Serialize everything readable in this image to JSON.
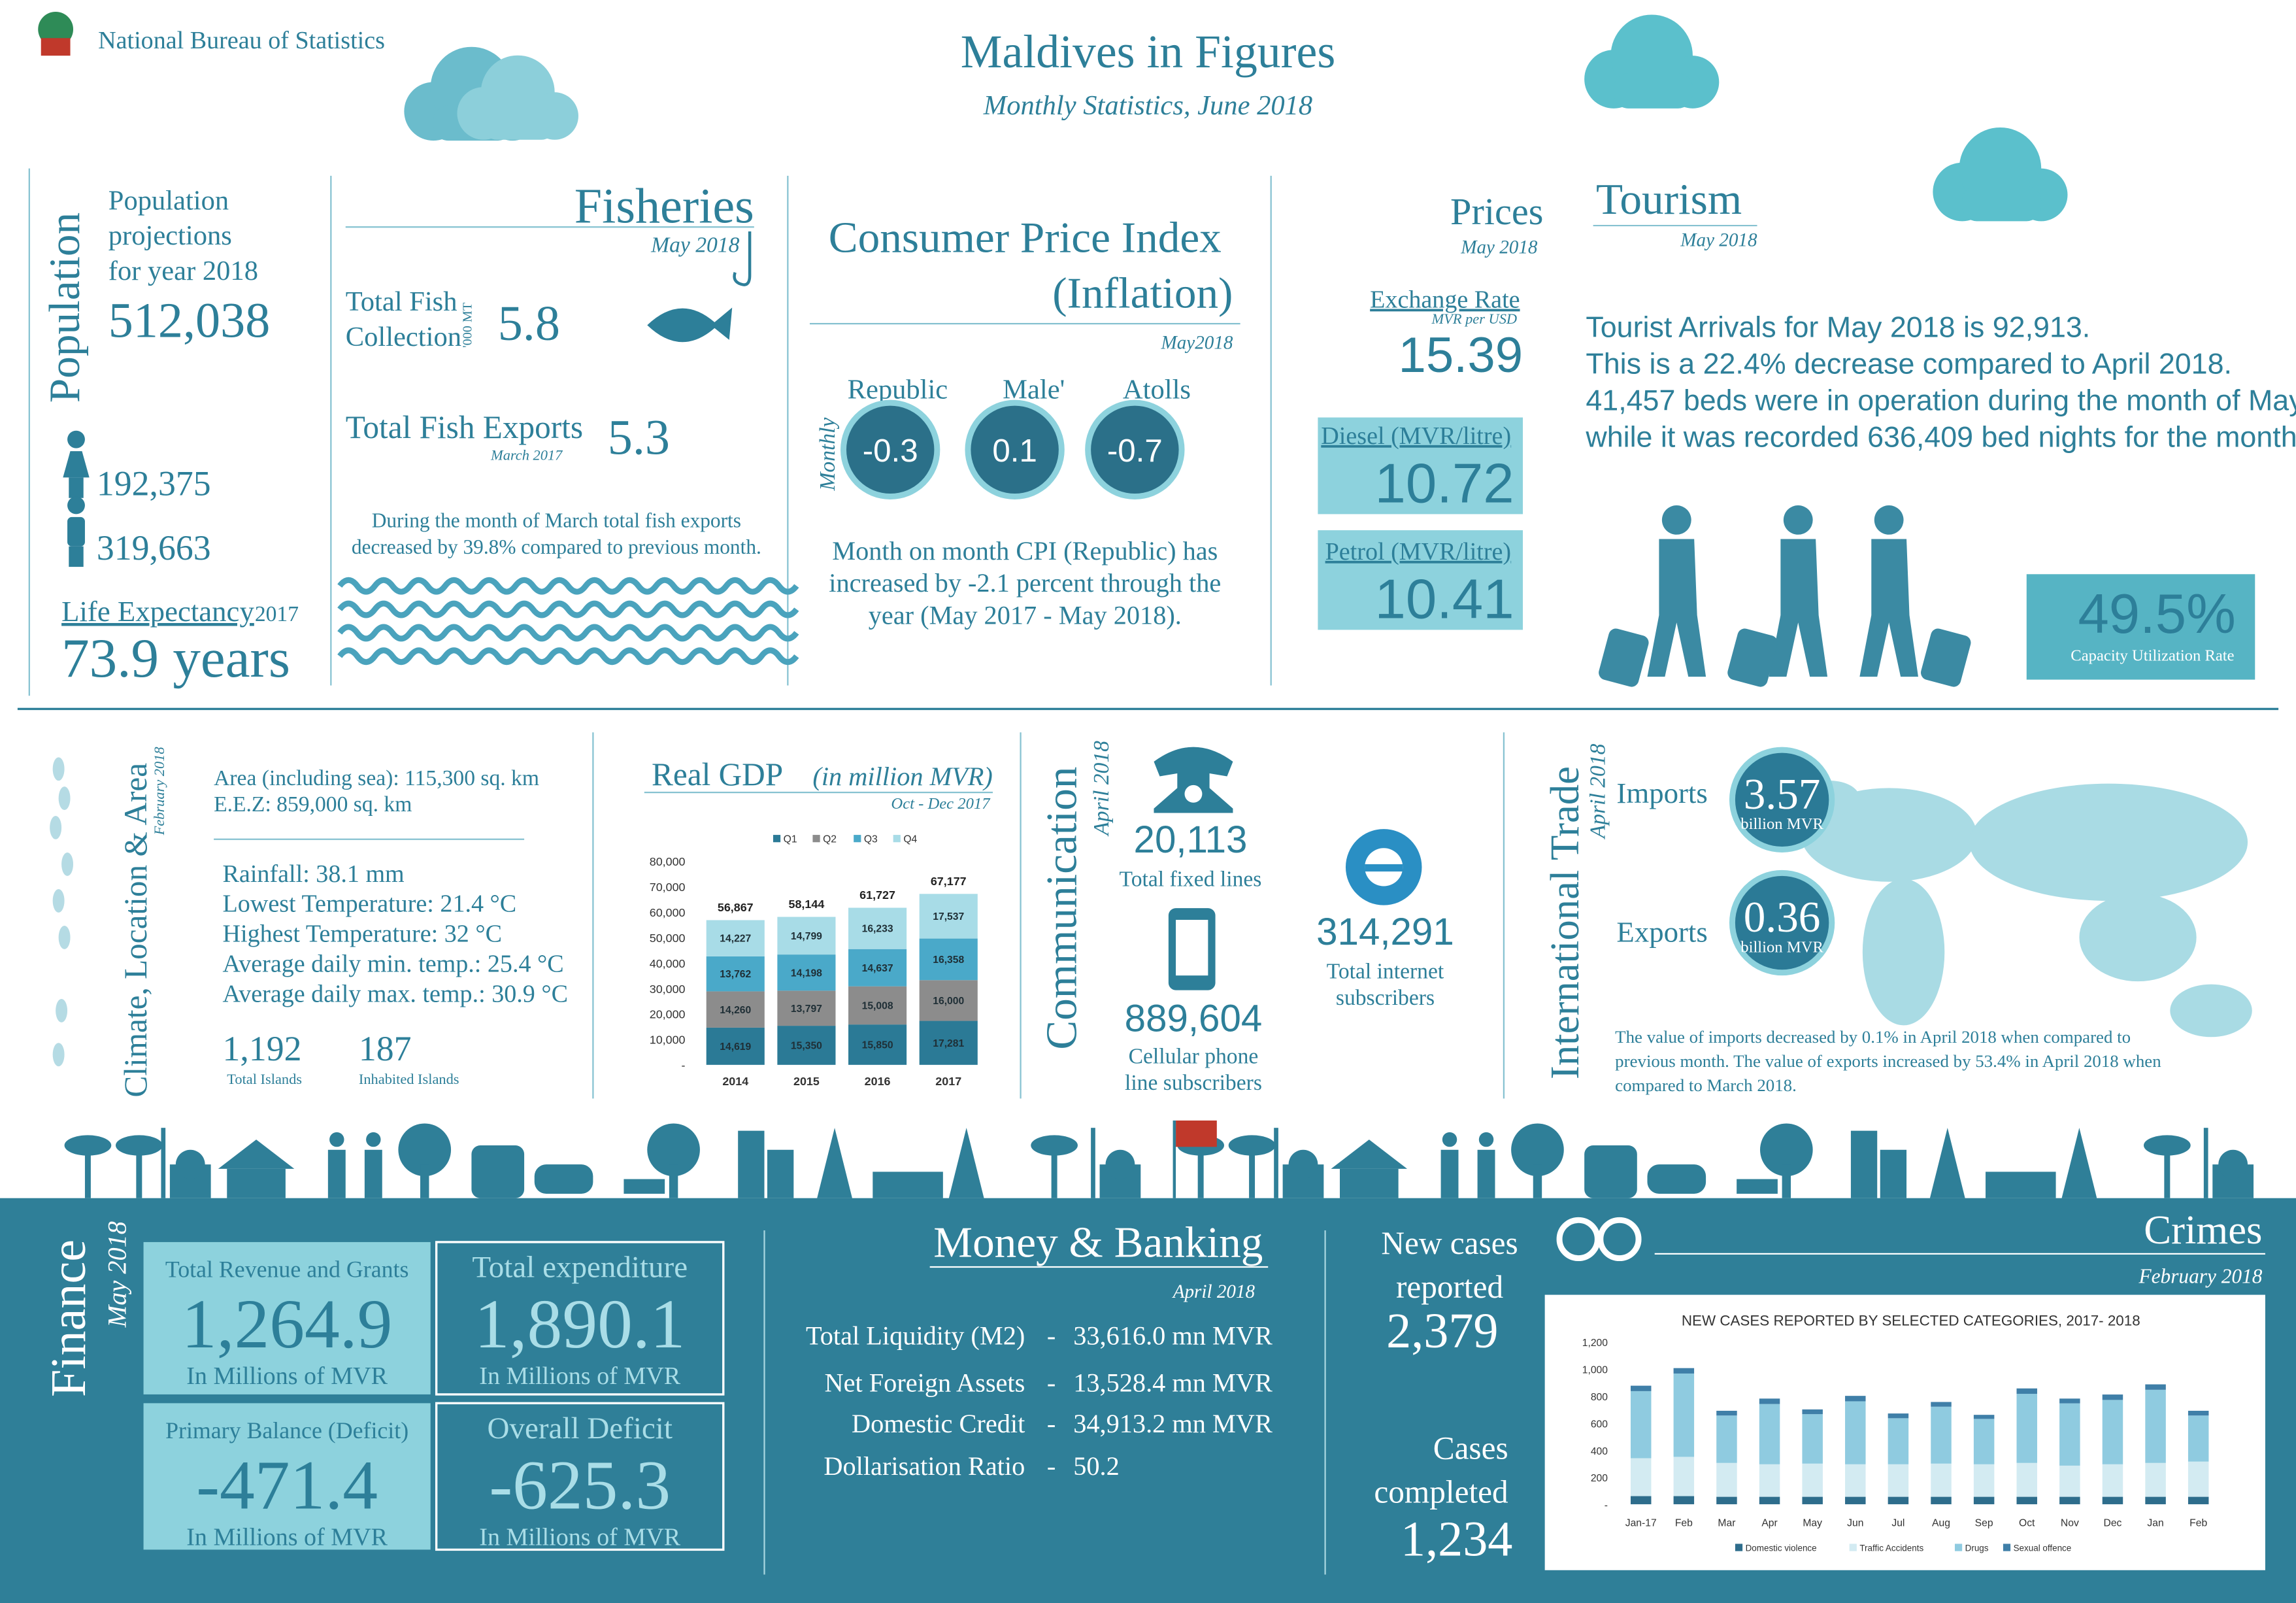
{
  "header": {
    "organization": "National Bureau of Statistics",
    "title": "Maldives in Figures",
    "subtitle": "Monthly Statistics, June 2018"
  },
  "population": {
    "heading": "Population",
    "projection_label": [
      "Population",
      "projections",
      "for year 2018"
    ],
    "projection_value": "512,038",
    "female": "192,375",
    "male": "319,663",
    "life_expectancy_label": "Life Expectancy",
    "life_expectancy_year": "2017",
    "life_expectancy_value": "73.9 years"
  },
  "fisheries": {
    "heading": "Fisheries",
    "date": "May 2018",
    "collection_label": [
      "Total Fish",
      "Collection"
    ],
    "collection_unit": "'000 MT",
    "collection_value": "5.8",
    "exports_label": "Total Fish Exports",
    "exports_date": "March 2017",
    "exports_value": "5.3",
    "note": [
      "During the month of March total fish exports",
      "decreased by 39.8% compared to previous month."
    ]
  },
  "cpi": {
    "heading": [
      "Consumer Price Index",
      "(Inflation)"
    ],
    "date": "May2018",
    "axis_label": "Monthly",
    "items": [
      {
        "label": "Republic",
        "value": "-0.3"
      },
      {
        "label": "Male'",
        "value": "0.1"
      },
      {
        "label": "Atolls",
        "value": "-0.7"
      }
    ],
    "note": [
      "Month on month CPI (Republic) has",
      "increased by -2.1 percent through the",
      "year (May 2017 - May 2018)."
    ]
  },
  "prices": {
    "heading": "Prices",
    "date": "May 2018",
    "exchange_label": "Exchange Rate",
    "exchange_unit": "MVR per USD",
    "exchange_value": "15.39",
    "diesel_label": "Diesel (MVR/litre)",
    "diesel_value": "10.72",
    "petrol_label": "Petrol (MVR/litre)",
    "petrol_value": "10.41"
  },
  "tourism": {
    "heading": "Tourism",
    "date": "May 2018",
    "text": [
      "Tourist Arrivals for May 2018 is 92,913.",
      "This is a 22.4% decrease compared to April 2018.",
      "41,457 beds were in operation during the month of May",
      "while it was recorded 636,409 bed nights for the month."
    ],
    "capacity_value": "49.5%",
    "capacity_label": "Capacity Utilization Rate"
  },
  "climate": {
    "heading": "Climate, Location & Area",
    "date": "February 2018",
    "area": [
      "Area (including sea): 115,300 sq. km",
      "E.E.Z: 859,000 sq. km"
    ],
    "weather": [
      "Rainfall: 38.1 mm",
      "Lowest Temperature: 21.4 °C",
      "Highest Temperature: 32 °C",
      "Average daily min. temp.: 25.4 °C",
      "Average daily max. temp.: 30.9 °C"
    ],
    "total_islands": "1,192",
    "total_islands_label": "Total Islands",
    "inhabited_islands": "187",
    "inhabited_islands_label": "Inhabited Islands"
  },
  "communication": {
    "heading": "Communication",
    "date": "April 2018",
    "fixed_lines": "20,113",
    "fixed_lines_label": "Total fixed lines",
    "cellular": "889,604",
    "cellular_label": [
      "Cellular phone",
      "line subscribers"
    ],
    "internet": "314,291",
    "internet_label": [
      "Total internet",
      "subscribers"
    ]
  },
  "trade": {
    "heading": "International Trade",
    "date": "April 2018",
    "imports_label": "Imports",
    "imports_value": "3.57",
    "imports_unit": "billion MVR",
    "exports_label": "Exports",
    "exports_value": "0.36",
    "exports_unit": "billion MVR",
    "note": [
      "The value of imports decreased by 0.1% in April 2018 when compared to",
      "previous month. The value of exports increased by 53.4% in April 2018 when",
      "compared to March 2018."
    ]
  },
  "finance": {
    "heading": "Finance",
    "date": "May 2018",
    "boxes": [
      {
        "label": "Total Revenue and Grants",
        "value": "1,264.9",
        "unit": "In Millions of MVR"
      },
      {
        "label": "Total expenditure",
        "value": "1,890.1",
        "unit": "In Millions of MVR"
      },
      {
        "label": "Primary Balance (Deficit)",
        "value": "-471.4",
        "unit": "In Millions of MVR"
      },
      {
        "label": "Overall Deficit",
        "value": "-625.3",
        "unit": "In Millions of MVR"
      }
    ]
  },
  "banking": {
    "heading": "Money & Banking",
    "date": "April 2018",
    "separator": "-",
    "rows": [
      [
        "Total Liquidity (M2)",
        "33,616.0 mn MVR"
      ],
      [
        "Net Foreign Assets",
        "13,528.4 mn MVR"
      ],
      [
        "Domestic Credit",
        "34,913.2 mn MVR"
      ],
      [
        "Dollarisation Ratio",
        "50.2"
      ]
    ]
  },
  "crimes": {
    "heading": "Crimes",
    "date": "February 2018",
    "new_cases_label": [
      "New cases",
      "reported"
    ],
    "new_cases_value": "2,379",
    "completed_label": [
      "Cases",
      "completed"
    ],
    "completed_value": "1,234"
  },
  "chart_data": [
    {
      "type": "bar",
      "stacked": true,
      "title": "Real GDP",
      "unit": "(in million MVR)",
      "subtitle": "Oct - Dec 2017",
      "categories": [
        "2014",
        "2015",
        "2016",
        "2017"
      ],
      "series": [
        {
          "name": "Q1",
          "color": "#2b7a96",
          "values": [
            14619,
            15350,
            15850,
            17281
          ],
          "value_labels": [
            "14,619",
            "15,350",
            "15,850",
            "17,281"
          ]
        },
        {
          "name": "Q2",
          "color": "#8c8c8c",
          "values": [
            14260,
            13797,
            15008,
            16000
          ],
          "value_labels": [
            "14,260",
            "13,797",
            "15,008",
            "16,000"
          ]
        },
        {
          "name": "Q3",
          "color": "#4aa9c9",
          "values": [
            13762,
            14198,
            14637,
            16358
          ],
          "value_labels": [
            "13,762",
            "14,198",
            "14,637",
            "16,358"
          ]
        },
        {
          "name": "Q4",
          "color": "#a8dce7",
          "values": [
            14227,
            14799,
            16233,
            17537
          ],
          "value_labels": [
            "14,227",
            "14,799",
            "16,233",
            "17,537"
          ]
        }
      ],
      "totals": [
        56867,
        58144,
        61727,
        67177
      ],
      "total_labels": [
        "56,867",
        "58,144",
        "61,727",
        "67,177"
      ],
      "ylim": [
        0,
        80000
      ],
      "yticks": [
        {
          "value": 0,
          "label": "-"
        },
        {
          "value": 10000,
          "label": "10,000"
        },
        {
          "value": 20000,
          "label": "20,000"
        },
        {
          "value": 30000,
          "label": "30,000"
        },
        {
          "value": 40000,
          "label": "40,000"
        },
        {
          "value": 50000,
          "label": "50,000"
        },
        {
          "value": 60000,
          "label": "60,000"
        },
        {
          "value": 70000,
          "label": "70,000"
        },
        {
          "value": 80000,
          "label": "80,000"
        }
      ],
      "grid": false
    },
    {
      "type": "bar",
      "stacked": true,
      "title": "NEW CASES REPORTED BY SELECTED CATEGORIES, 2017- 2018",
      "categories": [
        "Jan-17",
        "Feb",
        "Mar",
        "Apr",
        "May",
        "Jun",
        "Jul",
        "Aug",
        "Sep",
        "Oct",
        "Nov",
        "Dec",
        "Jan",
        "Feb"
      ],
      "series": [
        {
          "name": "Domestic violence",
          "color": "#2e6d8c",
          "values": [
            60,
            60,
            55,
            55,
            55,
            55,
            55,
            55,
            55,
            55,
            55,
            55,
            55,
            55
          ]
        },
        {
          "name": "Traffic Accidents",
          "color": "#d3ebf2",
          "values": [
            280,
            290,
            250,
            240,
            245,
            240,
            240,
            245,
            240,
            250,
            230,
            240,
            250,
            260
          ]
        },
        {
          "name": "Drugs",
          "color": "#8fcbe0",
          "values": [
            495,
            615,
            350,
            445,
            365,
            465,
            340,
            420,
            335,
            510,
            460,
            475,
            540,
            340
          ]
        },
        {
          "name": "Sexual offence",
          "color": "#3f7fa8",
          "values": [
            40,
            40,
            35,
            40,
            35,
            40,
            35,
            35,
            30,
            40,
            35,
            40,
            40,
            35
          ]
        }
      ],
      "ylim": [
        0,
        1200
      ],
      "yticks": [
        {
          "value": 0,
          "label": "-"
        },
        200,
        400,
        600,
        800,
        {
          "value": 1000,
          "label": "1,000"
        },
        {
          "value": 1200,
          "label": "1,200"
        }
      ],
      "grid": false
    }
  ]
}
